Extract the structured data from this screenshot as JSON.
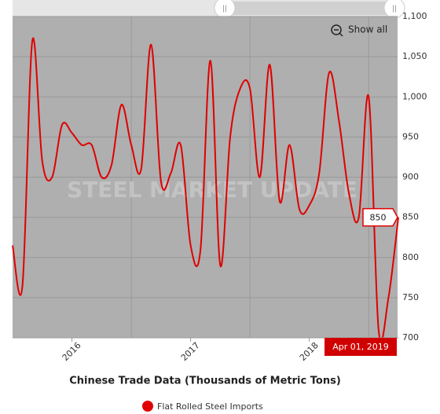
{
  "chart_data": {
    "type": "line",
    "title": "Chinese Trade Data (Thousands of Metric Tons)",
    "watermark": "STEEL MARKET UPDATE",
    "button": "Show all",
    "x": [
      "2016-01",
      "2016-02",
      "2016-03",
      "2016-04",
      "2016-05",
      "2016-06",
      "2016-07",
      "2016-08",
      "2016-09",
      "2016-10",
      "2016-11",
      "2016-12",
      "2017-01",
      "2017-02",
      "2017-03",
      "2017-04",
      "2017-05",
      "2017-06",
      "2017-07",
      "2017-08",
      "2017-09",
      "2017-10",
      "2017-11",
      "2017-12",
      "2018-01",
      "2018-02",
      "2018-03",
      "2018-04",
      "2018-05",
      "2018-06",
      "2018-07",
      "2018-08",
      "2018-09",
      "2018-10",
      "2018-11",
      "2018-12",
      "2019-01",
      "2019-02",
      "2019-03",
      "2019-04"
    ],
    "series": [
      {
        "name": "Flat Rolled Steel Imports",
        "color": "#e00000",
        "values": [
          815,
          765,
          1070,
          920,
          900,
          965,
          955,
          940,
          940,
          900,
          915,
          990,
          940,
          910,
          1065,
          895,
          905,
          940,
          815,
          810,
          1045,
          790,
          950,
          1010,
          1010,
          900,
          1040,
          870,
          940,
          860,
          865,
          905,
          1030,
          970,
          880,
          850,
          1000,
          710,
          750,
          850
        ]
      }
    ],
    "xlim": [
      "2016-01",
      "2019-04"
    ],
    "xticks": [
      {
        "value": "2016-07",
        "label": "2016"
      },
      {
        "value": "2017-07",
        "label": "2017"
      },
      {
        "value": "2018-07",
        "label": "2018"
      }
    ],
    "xgrid": [
      "2017-01",
      "2018-01",
      "2019-01"
    ],
    "ylim": [
      700,
      1100
    ],
    "yticks": [
      700,
      750,
      800,
      850,
      900,
      950,
      {
        "value": 1000,
        "label": "1,000"
      },
      {
        "value": 1050,
        "label": "1,050"
      },
      {
        "value": 1100,
        "label": "1,100"
      }
    ],
    "grid": true,
    "tooltip": {
      "date": "Apr 01, 2019",
      "value": 850
    }
  }
}
